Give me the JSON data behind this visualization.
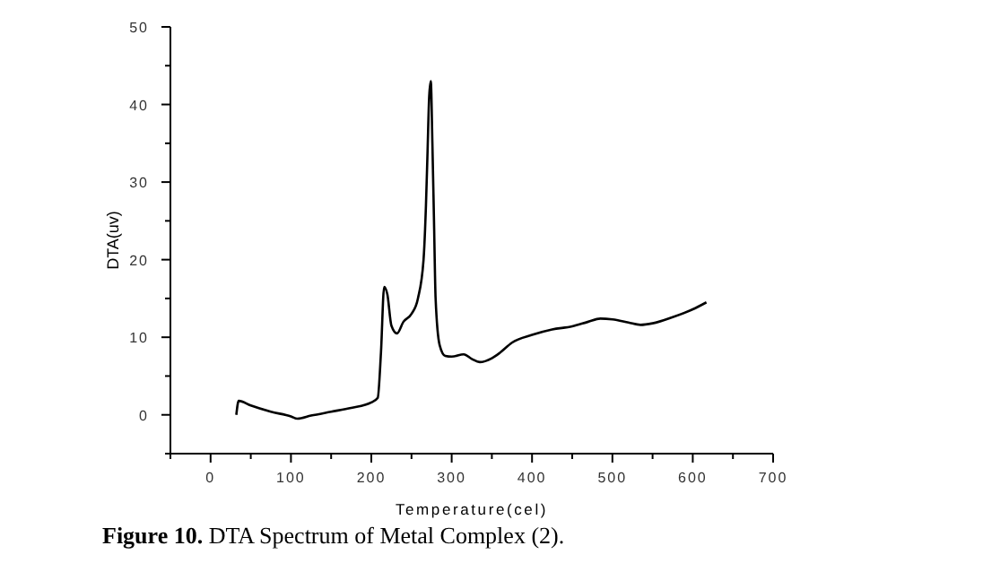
{
  "chart_data": {
    "type": "line",
    "xlabel": "Temperature(cel)",
    "ylabel": "DTA(uv)",
    "annotations": [
      "Figure 10.",
      "DTA Spectrum of Metal Complex (2)."
    ],
    "xlim": [
      -50,
      700
    ],
    "ylim": [
      -5,
      50
    ],
    "xticks": [
      {
        "value": -50,
        "label": null
      },
      0,
      {
        "value": 50,
        "label": null
      },
      100,
      {
        "value": 150,
        "label": null
      },
      200,
      {
        "value": 250,
        "label": null
      },
      300,
      {
        "value": 350,
        "label": null
      },
      400,
      {
        "value": 450,
        "label": null
      },
      500,
      {
        "value": 550,
        "label": null
      },
      600,
      {
        "value": 650,
        "label": null
      },
      700
    ],
    "yticks": [
      {
        "value": -5,
        "label": null
      },
      0,
      {
        "value": 5,
        "label": null
      },
      10,
      {
        "value": 15,
        "label": null
      },
      20,
      {
        "value": 25,
        "label": null
      },
      30,
      {
        "value": 35,
        "label": null
      },
      40,
      {
        "value": 45,
        "label": null
      },
      50
    ],
    "series": [
      {
        "color": "#000000",
        "x": [
          32,
          35,
          50,
          75,
          100,
          108,
          125,
          150,
          175,
          200,
          208,
          212,
          216,
          220,
          225,
          232,
          240,
          250,
          258,
          265,
          268,
          270,
          272,
          274,
          276,
          278,
          280,
          285,
          292,
          300,
          315,
          325,
          335,
          350,
          360,
          375,
          400,
          425,
          450,
          470,
          485,
          500,
          520,
          535,
          550,
          575,
          600,
          617
        ],
        "values": [
          0,
          1.8,
          1.2,
          0.4,
          -0.2,
          -0.5,
          -0.1,
          0.4,
          0.9,
          1.6,
          2.2,
          8,
          16.5,
          15.5,
          11.5,
          10.5,
          12,
          13,
          15,
          20,
          27,
          34,
          41,
          43,
          35,
          25,
          15,
          9,
          7.6,
          7.5,
          7.8,
          7.2,
          6.8,
          7.3,
          8,
          9.3,
          10.3,
          11,
          11.4,
          12,
          12.4,
          12.3,
          11.9,
          11.6,
          11.8,
          12.6,
          13.6,
          14.5
        ]
      }
    ]
  }
}
